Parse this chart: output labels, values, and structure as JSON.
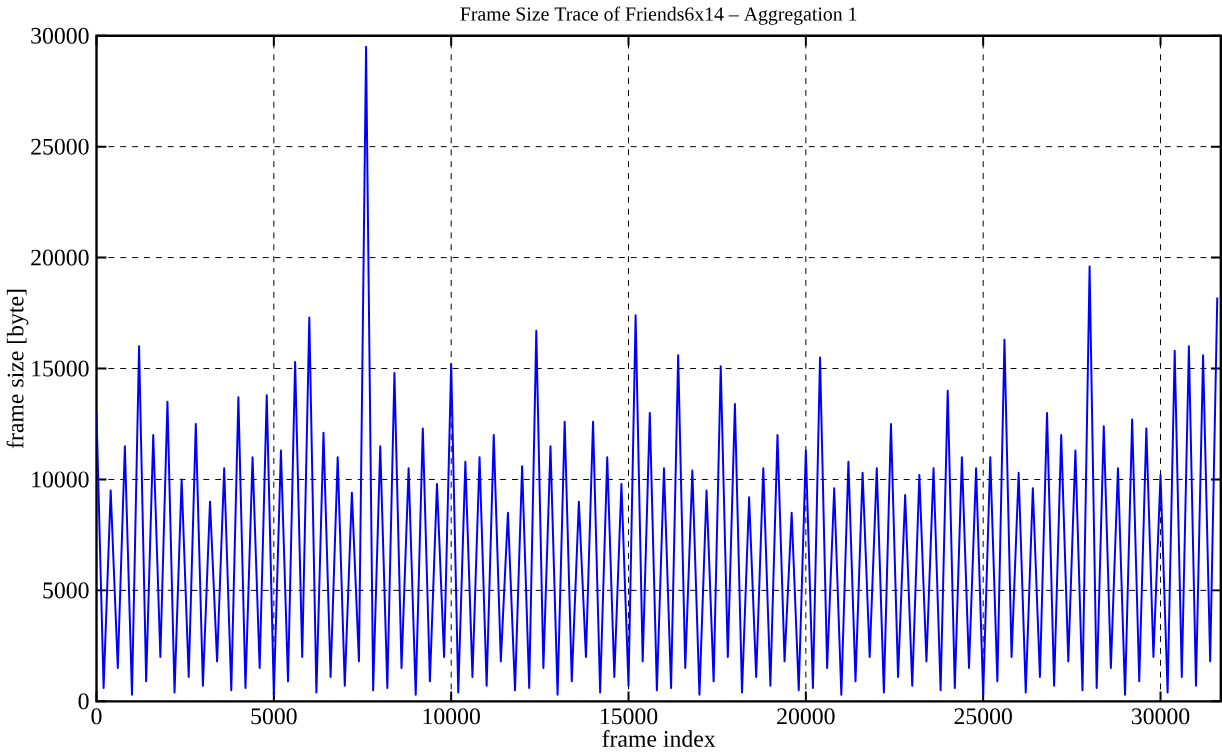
{
  "chart_data": {
    "type": "line",
    "title": "Frame Size Trace of Friends6x14 – Aggregation 1",
    "xlabel": "frame index",
    "ylabel": "frame size [byte]",
    "x": [
      0,
      200,
      400,
      600,
      800,
      1000,
      1200,
      1400,
      1600,
      1800,
      2000,
      2200,
      2400,
      2600,
      2800,
      3000,
      3200,
      3400,
      3600,
      3800,
      4000,
      4200,
      4400,
      4600,
      4800,
      5000,
      5200,
      5400,
      5600,
      5800,
      6000,
      6200,
      6400,
      6600,
      6800,
      7000,
      7200,
      7400,
      7600,
      7800,
      8000,
      8200,
      8400,
      8600,
      8800,
      9000,
      9200,
      9400,
      9600,
      9800,
      10000,
      10200,
      10400,
      10600,
      10800,
      11000,
      11200,
      11400,
      11600,
      11800,
      12000,
      12200,
      12400,
      12600,
      12800,
      13000,
      13200,
      13400,
      13600,
      13800,
      14000,
      14200,
      14400,
      14600,
      14800,
      15000,
      15200,
      15400,
      15600,
      15800,
      16000,
      16200,
      16400,
      16600,
      16800,
      17000,
      17200,
      17400,
      17600,
      17800,
      18000,
      18200,
      18400,
      18600,
      18800,
      19000,
      19200,
      19400,
      19600,
      19800,
      20000,
      20200,
      20400,
      20600,
      20800,
      21000,
      21200,
      21400,
      21600,
      21800,
      22000,
      22200,
      22400,
      22600,
      22800,
      23000,
      23200,
      23400,
      23600,
      23800,
      24000,
      24200,
      24400,
      24600,
      24800,
      25000,
      25200,
      25400,
      25600,
      25800,
      26000,
      26200,
      26400,
      26600,
      26800,
      27000,
      27200,
      27400,
      27600,
      27800,
      28000,
      28200,
      28400,
      28600,
      28800,
      29000,
      29200,
      29400,
      29600,
      29800,
      30000,
      30200,
      30400,
      30600,
      30800,
      31000,
      31200,
      31400,
      31600
    ],
    "series": [
      {
        "color": "#0000ff",
        "values": [
          13000,
          600,
          9500,
          1500,
          11500,
          300,
          16000,
          900,
          12000,
          2000,
          13500,
          400,
          10000,
          1100,
          12500,
          700,
          9000,
          1800,
          10500,
          500,
          13700,
          600,
          11000,
          1500,
          13800,
          300,
          11300,
          900,
          15300,
          2000,
          17300,
          400,
          12100,
          1100,
          11000,
          700,
          9400,
          1800,
          29500,
          500,
          11500,
          600,
          14800,
          1500,
          10500,
          300,
          12300,
          900,
          9800,
          2000,
          15200,
          400,
          10800,
          1100,
          11000,
          700,
          12000,
          1800,
          8500,
          500,
          10600,
          600,
          16700,
          1500,
          11500,
          300,
          12600,
          900,
          9000,
          2000,
          12600,
          400,
          11000,
          1100,
          9800,
          700,
          17400,
          1800,
          13000,
          500,
          10500,
          600,
          15600,
          1500,
          10400,
          300,
          9500,
          900,
          15100,
          2000,
          13400,
          400,
          9200,
          1100,
          10500,
          700,
          12000,
          1800,
          8500,
          500,
          11300,
          600,
          15500,
          1500,
          9600,
          300,
          10800,
          900,
          10300,
          2000,
          10500,
          400,
          12500,
          1100,
          9300,
          700,
          10200,
          1800,
          10500,
          500,
          14000,
          600,
          11000,
          1500,
          10500,
          300,
          11000,
          900,
          16300,
          2000,
          10300,
          400,
          9600,
          1100,
          13000,
          700,
          12000,
          1800,
          11300,
          500,
          19600,
          600,
          12400,
          1500,
          10500,
          300,
          12700,
          900,
          12300,
          2000,
          10200,
          400,
          15800,
          1100,
          16000,
          700,
          15600,
          1800,
          18200
        ]
      }
    ],
    "xlim": [
      0,
      31700
    ],
    "ylim": [
      0,
      30000
    ],
    "xticks": [
      0,
      5000,
      10000,
      15000,
      20000,
      25000,
      30000
    ],
    "yticks": [
      0,
      5000,
      10000,
      15000,
      20000,
      25000,
      30000
    ],
    "grid": true,
    "marker": "none",
    "line_style": "solid"
  }
}
